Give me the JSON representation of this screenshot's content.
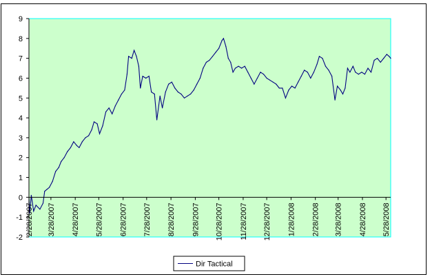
{
  "chart_data": {
    "type": "line",
    "title": "",
    "xlabel": "",
    "ylabel": "",
    "ylim": [
      -2,
      9
    ],
    "y_ticks": [
      -2,
      -1,
      0,
      1,
      2,
      3,
      4,
      5,
      6,
      7,
      8,
      9
    ],
    "x_ticks": [
      "2/28/2007",
      "3/28/2007",
      "4/28/2007",
      "5/28/2007",
      "6/28/2007",
      "7/28/2007",
      "8/28/2007",
      "9/28/2007",
      "10/28/2007",
      "11/28/2007",
      "12/28/2007",
      "1/28/2008",
      "2/28/2008",
      "3/28/2008",
      "4/28/2008",
      "5/28/2008"
    ],
    "x_range": [
      "2/28/2007",
      "6/3/2008"
    ],
    "grid": false,
    "plot_background": "#ccffcc",
    "series_color": "#000080",
    "legend_position": "bottom-center",
    "series": [
      {
        "name": "Dir Tactical",
        "points": [
          [
            "2/28/2007",
            0.0
          ],
          [
            "3/1/2007",
            -0.8
          ],
          [
            "3/3/2007",
            0.1
          ],
          [
            "3/6/2007",
            -0.7
          ],
          [
            "3/9/2007",
            -0.4
          ],
          [
            "3/14/2007",
            -0.6
          ],
          [
            "3/18/2007",
            -0.3
          ],
          [
            "3/20/2007",
            0.3
          ],
          [
            "3/23/2007",
            0.4
          ],
          [
            "3/26/2007",
            0.5
          ],
          [
            "3/30/2007",
            0.8
          ],
          [
            "4/3/2007",
            1.3
          ],
          [
            "4/7/2007",
            1.5
          ],
          [
            "4/10/2007",
            1.8
          ],
          [
            "4/14/2007",
            2.0
          ],
          [
            "4/18/2007",
            2.3
          ],
          [
            "4/22/2007",
            2.5
          ],
          [
            "4/26/2007",
            2.8
          ],
          [
            "4/30/2007",
            2.6
          ],
          [
            "5/3/2007",
            2.5
          ],
          [
            "5/7/2007",
            2.8
          ],
          [
            "5/11/2007",
            3.0
          ],
          [
            "5/15/2007",
            3.1
          ],
          [
            "5/19/2007",
            3.4
          ],
          [
            "5/22/2007",
            3.8
          ],
          [
            "5/26/2007",
            3.7
          ],
          [
            "5/29/2007",
            3.2
          ],
          [
            "6/2/2007",
            3.6
          ],
          [
            "6/6/2007",
            4.3
          ],
          [
            "6/10/2007",
            4.5
          ],
          [
            "6/14/2007",
            4.2
          ],
          [
            "6/18/2007",
            4.6
          ],
          [
            "6/22/2007",
            4.9
          ],
          [
            "6/26/2007",
            5.2
          ],
          [
            "6/30/2007",
            5.4
          ],
          [
            "7/3/2007",
            6.2
          ],
          [
            "7/5/2007",
            7.1
          ],
          [
            "7/9/2007",
            7.0
          ],
          [
            "7/12/2007",
            7.4
          ],
          [
            "7/15/2007",
            7.1
          ],
          [
            "7/18/2007",
            6.6
          ],
          [
            "7/20/2007",
            5.5
          ],
          [
            "7/23/2007",
            6.1
          ],
          [
            "7/27/2007",
            6.0
          ],
          [
            "7/31/2007",
            6.1
          ],
          [
            "8/3/2007",
            5.3
          ],
          [
            "8/7/2007",
            5.2
          ],
          [
            "8/10/2007",
            3.9
          ],
          [
            "8/14/2007",
            5.1
          ],
          [
            "8/17/2007",
            4.5
          ],
          [
            "8/21/2007",
            5.3
          ],
          [
            "8/25/2007",
            5.7
          ],
          [
            "8/29/2007",
            5.8
          ],
          [
            "9/2/2007",
            5.5
          ],
          [
            "9/6/2007",
            5.3
          ],
          [
            "9/10/2007",
            5.2
          ],
          [
            "9/14/2007",
            5.0
          ],
          [
            "9/18/2007",
            5.1
          ],
          [
            "9/22/2007",
            5.2
          ],
          [
            "9/26/2007",
            5.4
          ],
          [
            "9/30/2007",
            5.7
          ],
          [
            "10/4/2007",
            6.0
          ],
          [
            "10/8/2007",
            6.5
          ],
          [
            "10/12/2007",
            6.8
          ],
          [
            "10/16/2007",
            6.9
          ],
          [
            "10/20/2007",
            7.1
          ],
          [
            "10/24/2007",
            7.3
          ],
          [
            "10/28/2007",
            7.5
          ],
          [
            "11/1/2007",
            7.9
          ],
          [
            "11/3/2007",
            8.0
          ],
          [
            "11/6/2007",
            7.6
          ],
          [
            "11/9/2007",
            7.0
          ],
          [
            "11/12/2007",
            6.8
          ],
          [
            "11/15/2007",
            6.3
          ],
          [
            "11/18/2007",
            6.5
          ],
          [
            "11/22/2007",
            6.6
          ],
          [
            "11/26/2007",
            6.5
          ],
          [
            "11/30/2007",
            6.6
          ],
          [
            "12/4/2007",
            6.3
          ],
          [
            "12/8/2007",
            6.0
          ],
          [
            "12/12/2007",
            5.7
          ],
          [
            "12/16/2007",
            6.0
          ],
          [
            "12/20/2007",
            6.3
          ],
          [
            "12/24/2007",
            6.2
          ],
          [
            "12/28/2007",
            6.0
          ],
          [
            "1/1/2008",
            5.9
          ],
          [
            "1/5/2008",
            5.8
          ],
          [
            "1/9/2008",
            5.7
          ],
          [
            "1/13/2008",
            5.5
          ],
          [
            "1/17/2008",
            5.5
          ],
          [
            "1/21/2008",
            5.0
          ],
          [
            "1/25/2008",
            5.4
          ],
          [
            "1/29/2008",
            5.6
          ],
          [
            "2/2/2008",
            5.5
          ],
          [
            "2/6/2008",
            5.8
          ],
          [
            "2/10/2008",
            6.1
          ],
          [
            "2/14/2008",
            6.4
          ],
          [
            "2/18/2008",
            6.3
          ],
          [
            "2/22/2008",
            6.0
          ],
          [
            "2/26/2008",
            6.3
          ],
          [
            "3/1/2008",
            6.7
          ],
          [
            "3/4/2008",
            7.1
          ],
          [
            "3/8/2008",
            7.0
          ],
          [
            "3/12/2008",
            6.6
          ],
          [
            "3/16/2008",
            6.4
          ],
          [
            "3/20/2008",
            6.1
          ],
          [
            "3/24/2008",
            4.9
          ],
          [
            "3/27/2008",
            5.6
          ],
          [
            "3/31/2008",
            5.4
          ],
          [
            "4/3/2008",
            5.2
          ],
          [
            "4/6/2008",
            5.5
          ],
          [
            "4/9/2008",
            6.5
          ],
          [
            "4/12/2008",
            6.3
          ],
          [
            "4/16/2008",
            6.6
          ],
          [
            "4/19/2008",
            6.3
          ],
          [
            "4/23/2008",
            6.2
          ],
          [
            "4/27/2008",
            6.3
          ],
          [
            "5/1/2008",
            6.2
          ],
          [
            "5/5/2008",
            6.5
          ],
          [
            "5/9/2008",
            6.3
          ],
          [
            "5/13/2008",
            6.9
          ],
          [
            "5/17/2008",
            7.0
          ],
          [
            "5/21/2008",
            6.8
          ],
          [
            "5/25/2008",
            7.0
          ],
          [
            "5/29/2008",
            7.2
          ],
          [
            "6/1/2008",
            7.1
          ],
          [
            "6/3/2008",
            7.0
          ]
        ]
      }
    ]
  }
}
